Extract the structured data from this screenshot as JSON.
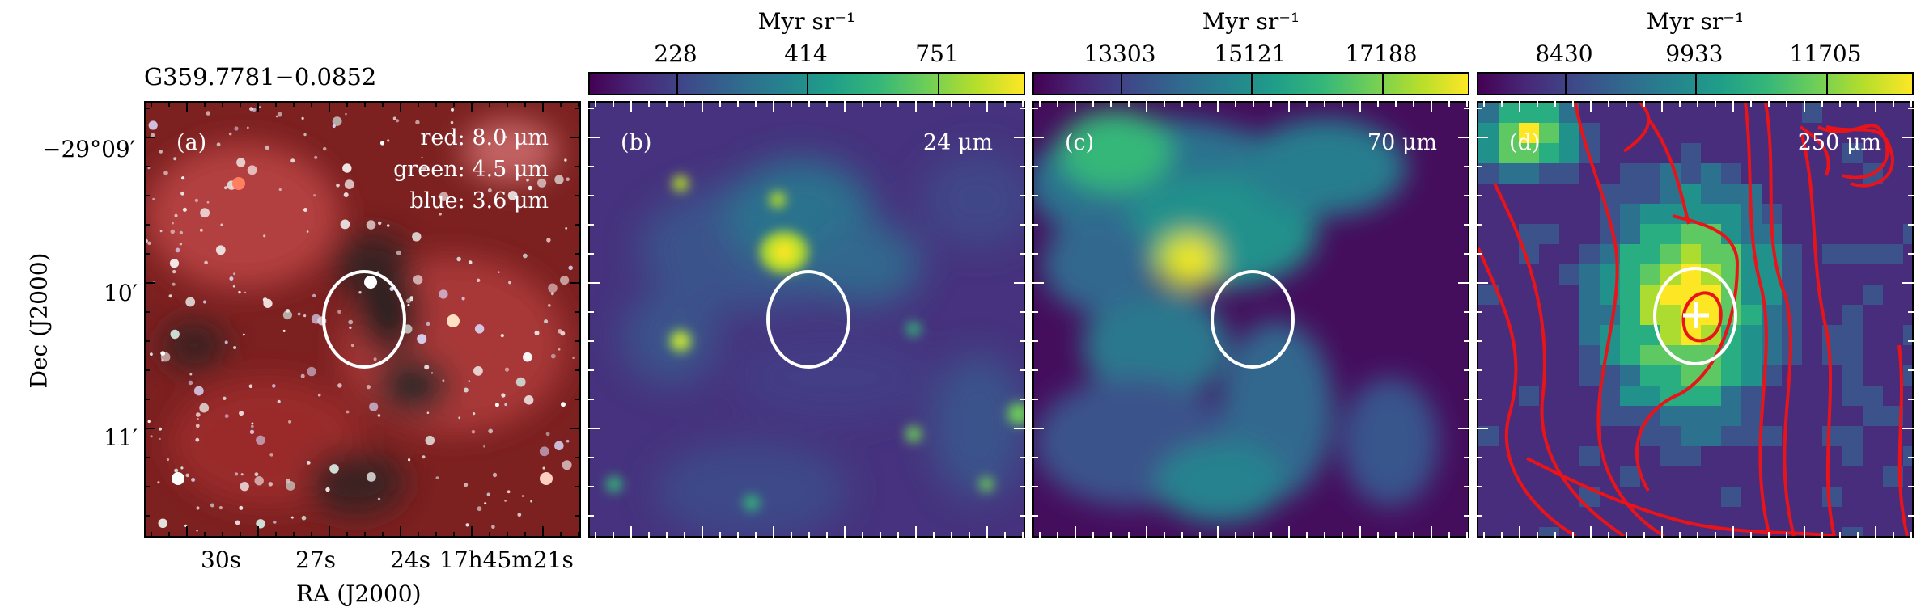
{
  "source_name": "G359.7781−0.0852",
  "panels": [
    {
      "id": "a",
      "label": "(a)",
      "legend": [
        "red: 8.0 μm",
        "green: 4.5 μm",
        "blue: 3.6 μm"
      ]
    },
    {
      "id": "b",
      "label": "(b)",
      "wavelength": "24 μm",
      "colorbar": {
        "unit": "Myr sr⁻¹",
        "ticks": [
          "228",
          "414",
          "751"
        ]
      }
    },
    {
      "id": "c",
      "label": "(c)",
      "wavelength": "70 μm",
      "colorbar": {
        "unit": "Myr sr⁻¹",
        "ticks": [
          "13303",
          "15121",
          "17188"
        ]
      }
    },
    {
      "id": "d",
      "label": "(d)",
      "wavelength": "250 μm",
      "colorbar": {
        "unit": "Myr sr⁻¹",
        "ticks": [
          "8430",
          "9933",
          "11705"
        ]
      }
    }
  ],
  "axes": {
    "xlabel": "RA (J2000)",
    "ylabel": "Dec (J2000)",
    "xticks": [
      "30s",
      "27s",
      "24s",
      "17h45m21s"
    ],
    "yticks": [
      "−29°09′",
      "10′",
      "11′"
    ]
  },
  "colors": {
    "viridis_low": "#440154",
    "viridis_high": "#fde725",
    "contour": "#e8141a",
    "ellipse": "#ffffff"
  }
}
